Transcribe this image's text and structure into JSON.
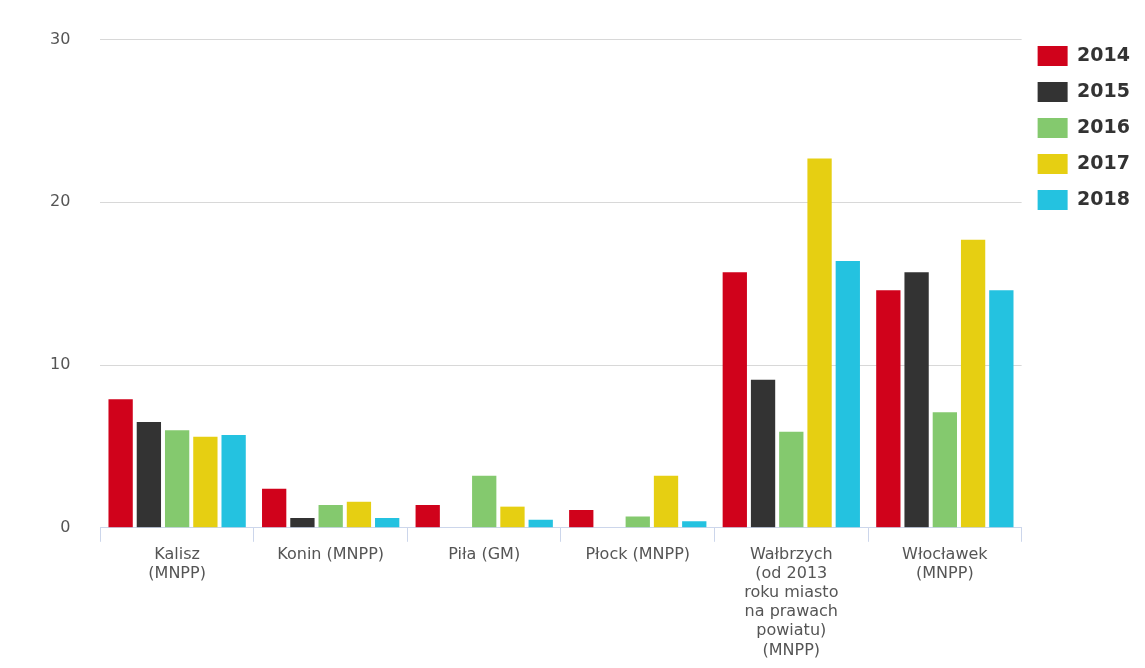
{
  "chart_data": {
    "type": "bar",
    "categories": [
      "Kalisz (MNPP)",
      "Konin (MNPP)",
      "Piła (GM)",
      "Płock (MNPP)",
      "Wałbrzych (od 2013 roku miasto na prawach powiatu) (MNPP)",
      "Włocławek (MNPP)"
    ],
    "series": [
      {
        "name": "2014",
        "color": "#d0021b",
        "values": [
          7.9,
          2.4,
          1.4,
          1.1,
          15.7,
          14.6
        ]
      },
      {
        "name": "2015",
        "color": "#333333",
        "values": [
          6.5,
          0.6,
          null,
          null,
          9.1,
          15.7
        ]
      },
      {
        "name": "2016",
        "color": "#84c96e",
        "values": [
          6.0,
          1.4,
          3.2,
          0.7,
          5.9,
          7.1
        ]
      },
      {
        "name": "2017",
        "color": "#e6cf12",
        "values": [
          5.6,
          1.6,
          1.3,
          3.2,
          22.7,
          17.7
        ]
      },
      {
        "name": "2018",
        "color": "#24c2e0",
        "values": [
          5.7,
          0.6,
          0.5,
          0.4,
          16.4,
          14.6
        ]
      }
    ],
    "ylim": [
      0,
      30
    ],
    "yticks": [
      0,
      10,
      20,
      30
    ],
    "grid": "y",
    "legend": "top right"
  }
}
